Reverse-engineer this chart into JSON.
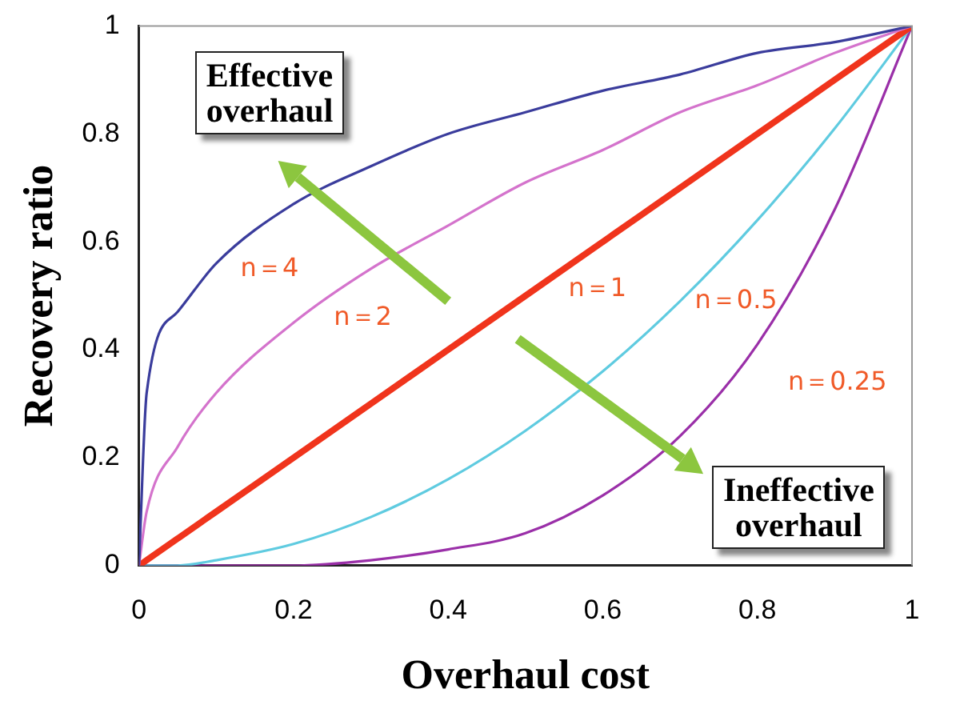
{
  "chart_data": {
    "type": "line",
    "xlabel": "Overhaul cost",
    "ylabel": "Recovery ratio",
    "x": [
      0,
      0.01,
      0.05,
      0.1,
      0.2,
      0.3,
      0.4,
      0.5,
      0.6,
      0.7,
      0.8,
      0.9,
      1
    ],
    "xlim": [
      0,
      1
    ],
    "ylim": [
      0,
      1
    ],
    "xticks": [
      0,
      0.2,
      0.4,
      0.6,
      0.8,
      1
    ],
    "yticks": [
      0,
      0.2,
      0.4,
      0.6,
      0.8,
      1
    ],
    "grid": false,
    "legend": false,
    "marker": "none",
    "line_style": "solid",
    "series": [
      {
        "name": "n＝4",
        "color": "#3a3c9c",
        "values": [
          0,
          0.32,
          0.47,
          0.56,
          0.67,
          0.74,
          0.8,
          0.84,
          0.88,
          0.91,
          0.95,
          0.97,
          1
        ]
      },
      {
        "name": "n＝2",
        "color": "#d473cc",
        "values": [
          0,
          0.1,
          0.22,
          0.32,
          0.45,
          0.55,
          0.63,
          0.71,
          0.77,
          0.84,
          0.89,
          0.95,
          1
        ]
      },
      {
        "name": "n＝1",
        "color": "#f0341c",
        "values": [
          0,
          0.01,
          0.05,
          0.1,
          0.2,
          0.3,
          0.4,
          0.5,
          0.6,
          0.7,
          0.8,
          0.9,
          1
        ]
      },
      {
        "name": "n＝0.5",
        "color": "#5fcbe0",
        "values": [
          0,
          0,
          0,
          0.01,
          0.04,
          0.09,
          0.16,
          0.25,
          0.36,
          0.49,
          0.64,
          0.81,
          1
        ]
      },
      {
        "name": "n＝0.25",
        "color": "#9a2fa8",
        "values": [
          0,
          0,
          0,
          0,
          0,
          0.01,
          0.03,
          0.06,
          0.13,
          0.24,
          0.41,
          0.66,
          1
        ]
      }
    ],
    "annotations": [
      "Effective overhaul",
      "Ineffective overhaul"
    ]
  }
}
